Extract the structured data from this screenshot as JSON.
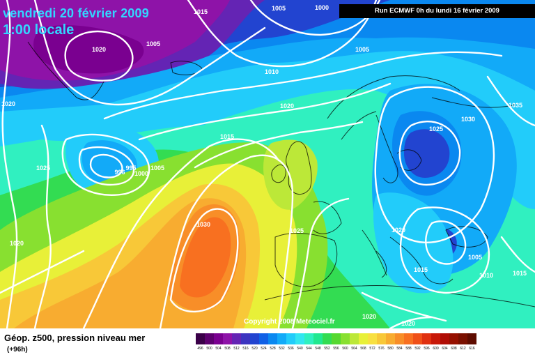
{
  "header": {
    "date": "vendredi 20 février 2009",
    "time": "1:00 locale",
    "run": "Run ECMWF 0h du lundi 16 février 2009"
  },
  "footer": {
    "field": "Géop. z500, pression niveau mer",
    "forecast_hour": "(+96h)",
    "copyright": "Copyright 2008 Meteociel.fr"
  },
  "colorbar": {
    "values": [
      "496",
      "500",
      "504",
      "508",
      "512",
      "516",
      "520",
      "524",
      "528",
      "532",
      "536",
      "540",
      "544",
      "548",
      "552",
      "556",
      "560",
      "564",
      "568",
      "572",
      "576",
      "580",
      "584",
      "588",
      "592",
      "596",
      "600",
      "604",
      "608",
      "612",
      "616"
    ],
    "colors": [
      "#3a0048",
      "#5c006e",
      "#7a0090",
      "#8e13a8",
      "#6424b4",
      "#3c34c0",
      "#2244d0",
      "#1060e6",
      "#0a88f0",
      "#12aaf8",
      "#22ccfa",
      "#33e6f0",
      "#30f0c0",
      "#22e890",
      "#33dc52",
      "#55d830",
      "#88e030",
      "#bce838",
      "#e8f038",
      "#f8e040",
      "#f8c838",
      "#f8ac30",
      "#f88e28",
      "#f87020",
      "#f05018",
      "#e03010",
      "#c81808",
      "#b00c04",
      "#961000",
      "#7a1000",
      "#5e0c00"
    ]
  },
  "isobar_labels": [
    "1015",
    "1005",
    "1000",
    "1020",
    "1005",
    "1010",
    "1005",
    "1020",
    "1020",
    "1015",
    "996",
    "995",
    "1000",
    "1005",
    "1030",
    "1025",
    "1025",
    "1030",
    "1035",
    "1020",
    "1020",
    "1025",
    "1015",
    "1005",
    "1010",
    "1015",
    "1020",
    "1020"
  ],
  "icons": {
    "map": "synoptic-weather-map"
  }
}
